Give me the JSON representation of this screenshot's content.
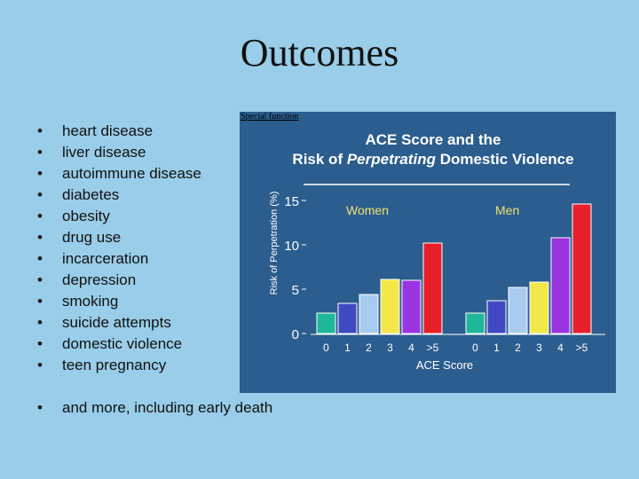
{
  "slide": {
    "title": "Outcomes",
    "bullets": [
      "heart disease",
      "liver disease",
      "autoimmune disease",
      "diabetes",
      "obesity",
      "drug use",
      "incarceration",
      "depression",
      "smoking",
      "suicide attempts",
      "domestic violence",
      "teen pregnancy"
    ],
    "final_bullet": "and more, including early death",
    "source_label": "Special function"
  },
  "colors": {
    "background": "#99cde9",
    "panel": "#2b5d8e",
    "title_text": "#ffffff",
    "group_label": "#f0e070",
    "axis_text": "#ffffff"
  },
  "chart_data": {
    "type": "bar",
    "title_line1": "ACE Score and the",
    "title_line2_prefix": "Risk of ",
    "title_line2_em": "Perpetrating",
    "title_line2_suffix": " Domestic Violence",
    "ylabel": "Risk of Perpetration (%)",
    "xlabel": "ACE Score",
    "ylim": [
      0,
      15
    ],
    "yticks": [
      "0",
      "5",
      "10",
      "15"
    ],
    "categories": [
      "0",
      "1",
      "2",
      "3",
      "4",
      ">5"
    ],
    "bar_colors": [
      "#1fb79a",
      "#3f49c2",
      "#a8ccf0",
      "#f2e84a",
      "#9a33e0",
      "#e8202a"
    ],
    "series": [
      {
        "name": "Women",
        "values": [
          2.3,
          3.4,
          4.4,
          6.1,
          6.0,
          10.2
        ]
      },
      {
        "name": "Men",
        "values": [
          2.3,
          3.7,
          5.2,
          5.8,
          10.8,
          14.6
        ]
      }
    ]
  }
}
